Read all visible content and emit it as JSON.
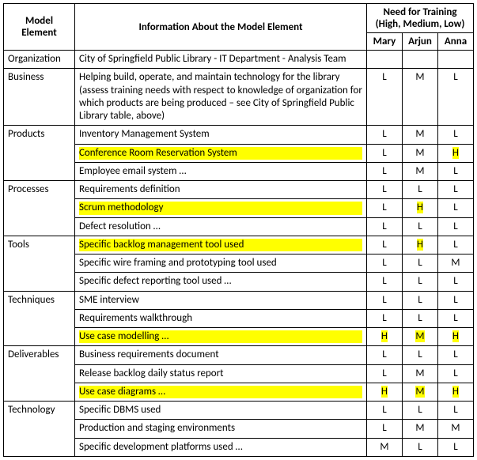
{
  "headers": {
    "model_element": "Model Element",
    "info": "Information About the Model Element",
    "training_group": "Need for Training (High, Medium, Low)",
    "people": [
      "Mary",
      "Arjun",
      "Anna"
    ]
  },
  "sections": [
    {
      "label": "Organization",
      "items": [
        {
          "text": "City of Springfield Public Library - IT Department - Analysis Team",
          "hl": false,
          "ratings": [
            "",
            "",
            ""
          ],
          "rhl": [
            false,
            false,
            false
          ]
        }
      ]
    },
    {
      "label": "Business",
      "items": [
        {
          "text": "Helping build, operate, and maintain technology for the library (assess training needs with respect to knowledge of organization for which products are being produced – see City of Springfield Public Library table, above)",
          "hl": false,
          "ratings": [
            "L",
            "M",
            "L"
          ],
          "rhl": [
            false,
            false,
            false
          ]
        }
      ]
    },
    {
      "label": "Products",
      "items": [
        {
          "text": "Inventory Management System",
          "hl": false,
          "ratings": [
            "L",
            "M",
            "L"
          ],
          "rhl": [
            false,
            false,
            false
          ]
        },
        {
          "text": "Conference Room Reservation System",
          "hl": true,
          "ratings": [
            "L",
            "M",
            "H"
          ],
          "rhl": [
            false,
            false,
            true
          ]
        },
        {
          "text": "Employee email system …",
          "hl": false,
          "ratings": [
            "L",
            "M",
            "L"
          ],
          "rhl": [
            false,
            false,
            false
          ]
        }
      ]
    },
    {
      "label": "Processes",
      "items": [
        {
          "text": "Requirements definition",
          "hl": false,
          "ratings": [
            "L",
            "L",
            "L"
          ],
          "rhl": [
            false,
            false,
            false
          ]
        },
        {
          "text": "Scrum methodology",
          "hl": true,
          "ratings": [
            "L",
            "H",
            "L"
          ],
          "rhl": [
            false,
            true,
            false
          ]
        },
        {
          "text": "Defect resolution …",
          "hl": false,
          "ratings": [
            "L",
            "L",
            "L"
          ],
          "rhl": [
            false,
            false,
            false
          ]
        }
      ]
    },
    {
      "label": "Tools",
      "items": [
        {
          "text": "Specific backlog management tool used",
          "hl": true,
          "ratings": [
            "L",
            "H",
            "L"
          ],
          "rhl": [
            false,
            true,
            false
          ]
        },
        {
          "text": "Specific wire framing and prototyping tool used",
          "hl": false,
          "ratings": [
            "L",
            "L",
            "M"
          ],
          "rhl": [
            false,
            false,
            false
          ]
        },
        {
          "text": "Specific defect reporting tool used …",
          "hl": false,
          "ratings": [
            "L",
            "L",
            "L"
          ],
          "rhl": [
            false,
            false,
            false
          ]
        }
      ]
    },
    {
      "label": "Techniques",
      "items": [
        {
          "text": "SME interview",
          "hl": false,
          "ratings": [
            "L",
            "L",
            "L"
          ],
          "rhl": [
            false,
            false,
            false
          ]
        },
        {
          "text": "Requirements walkthrough",
          "hl": false,
          "ratings": [
            "L",
            "L",
            "L"
          ],
          "rhl": [
            false,
            false,
            false
          ]
        },
        {
          "text": "Use case modelling …",
          "hl": true,
          "ratings": [
            "H",
            "M",
            "H"
          ],
          "rhl": [
            true,
            true,
            true
          ]
        }
      ]
    },
    {
      "label": "Deliverables",
      "items": [
        {
          "text": "Business requirements document",
          "hl": false,
          "ratings": [
            "L",
            "L",
            "L"
          ],
          "rhl": [
            false,
            false,
            false
          ]
        },
        {
          "text": "Release backlog daily status report",
          "hl": false,
          "ratings": [
            "L",
            "M",
            "L"
          ],
          "rhl": [
            false,
            false,
            false
          ]
        },
        {
          "text": "Use case diagrams …",
          "hl": true,
          "ratings": [
            "H",
            "M",
            "H"
          ],
          "rhl": [
            true,
            true,
            true
          ]
        }
      ]
    },
    {
      "label": "Technology",
      "items": [
        {
          "text": "Specific DBMS used",
          "hl": false,
          "ratings": [
            "L",
            "L",
            "L"
          ],
          "rhl": [
            false,
            false,
            false
          ]
        },
        {
          "text": "Production and staging environments",
          "hl": false,
          "ratings": [
            "L",
            "M",
            "M"
          ],
          "rhl": [
            false,
            false,
            false
          ]
        },
        {
          "text": "Specific development platforms used …",
          "hl": false,
          "ratings": [
            "M",
            "L",
            "L"
          ],
          "rhl": [
            false,
            false,
            false
          ]
        }
      ]
    }
  ]
}
